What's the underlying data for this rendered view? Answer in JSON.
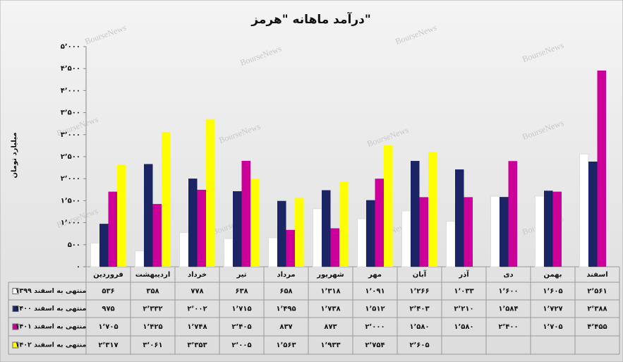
{
  "chart_data": {
    "type": "bar",
    "title": "درآمد ماهانه \"هرمز\"",
    "y_label": "میلیارد تومان",
    "watermark": "BourseNews",
    "categories": [
      "فروردین",
      "اردیبهشت",
      "خرداد",
      "تیر",
      "مرداد",
      "شهریور",
      "مهر",
      "آبان",
      "آذر",
      "دی",
      "بهمن",
      "اسفند"
    ],
    "series": [
      {
        "name": "منتهی به اسفند ۱۳۹۹",
        "color": "#ffffff",
        "values": [
          536,
          358,
          778,
          638,
          658,
          1318,
          1091,
          1266,
          1033,
          1600,
          1605,
          2561
        ],
        "value_labels": [
          "۵۳۶",
          "۳۵۸",
          "۷۷۸",
          "۶۳۸",
          "۶۵۸",
          "۱٬۳۱۸",
          "۱٬۰۹۱",
          "۱٬۲۶۶",
          "۱٬۰۳۳",
          "۱٬۶۰۰",
          "۱٬۶۰۵",
          "۲٬۵۶۱"
        ]
      },
      {
        "name": "منتهی به اسفند ۱۴۰۰",
        "color": "#1b2566",
        "values": [
          975,
          2332,
          2002,
          1715,
          1495,
          1738,
          1512,
          2403,
          2210,
          1584,
          1727,
          2388
        ],
        "value_labels": [
          "۹۷۵",
          "۲٬۳۳۲",
          "۲٬۰۰۲",
          "۱٬۷۱۵",
          "۱٬۴۹۵",
          "۱٬۷۳۸",
          "۱٬۵۱۲",
          "۲٬۴۰۳",
          "۲٬۲۱۰",
          "۱٬۵۸۴",
          "۱٬۷۲۷",
          "۲٬۳۸۸"
        ]
      },
      {
        "name": "منتهی به اسفند ۱۴۰۱",
        "color": "#cc0099",
        "values": [
          1705,
          1425,
          1748,
          2405,
          837,
          873,
          2000,
          1580,
          1580,
          2400,
          1705,
          4455
        ],
        "value_labels": [
          "۱٬۷۰۵",
          "۱٬۴۲۵",
          "۱٬۷۴۸",
          "۲٬۴۰۵",
          "۸۳۷",
          "۸۷۳",
          "۲٬۰۰۰",
          "۱٬۵۸۰",
          "۱٬۵۸۰",
          "۲٬۴۰۰",
          "۱٬۷۰۵",
          "۴٬۴۵۵"
        ]
      },
      {
        "name": "منتهی به اسفند ۱۴۰۲",
        "color": "#ffff00",
        "values": [
          2317,
          3061,
          3353,
          2005,
          1563,
          1933,
          2754,
          2605,
          null,
          null,
          null,
          null
        ],
        "value_labels": [
          "۲٬۳۱۷",
          "۳٬۰۶۱",
          "۳٬۳۵۳",
          "۲٬۰۰۵",
          "۱٬۵۶۳",
          "۱٬۹۳۳",
          "۲٬۷۵۴",
          "۲٬۶۰۵",
          null,
          null,
          null,
          null
        ]
      }
    ],
    "ylim": [
      0,
      5000
    ],
    "yticks": [
      {
        "value": 0,
        "label": "۰"
      },
      {
        "value": 500,
        "label": "۵۰۰"
      },
      {
        "value": 1000,
        "label": "۱٬۰۰۰"
      },
      {
        "value": 1500,
        "label": "۱٬۵۰۰"
      },
      {
        "value": 2000,
        "label": "۲٬۰۰۰"
      },
      {
        "value": 2500,
        "label": "۲٬۵۰۰"
      },
      {
        "value": 3000,
        "label": "۳٬۰۰۰"
      },
      {
        "value": 3500,
        "label": "۳٬۵۰۰"
      },
      {
        "value": 4000,
        "label": "۴٬۰۰۰"
      },
      {
        "value": 4500,
        "label": "۴٬۵۰۰"
      },
      {
        "value": 5000,
        "label": "۵٬۰۰۰"
      }
    ],
    "grid": false
  }
}
